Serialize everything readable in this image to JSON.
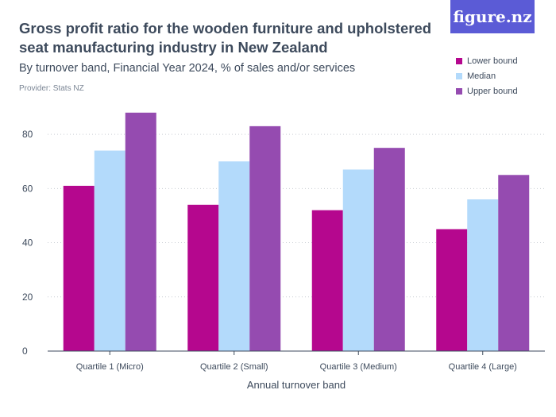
{
  "header": {
    "title": "Gross profit ratio for the wooden furniture and upholstered seat manufacturing industry in New Zealand",
    "subtitle": "By turnover band, Financial Year 2024, % of sales and/or services",
    "provider": "Provider: Stats NZ",
    "logo_text": "figure.nz"
  },
  "colors": {
    "lower": "#b5078e",
    "median": "#b3dafb",
    "upper": "#954bb0",
    "logo_bg": "#5b5bd6"
  },
  "chart_data": {
    "type": "bar",
    "categories": [
      "Quartile 1 (Micro)",
      "Quartile 2 (Small)",
      "Quartile 3 (Medium)",
      "Quartile 4 (Large)"
    ],
    "series": [
      {
        "name": "Lower bound",
        "color": "#b5078e",
        "values": [
          61,
          54,
          52,
          45
        ]
      },
      {
        "name": "Median",
        "color": "#b3dafb",
        "values": [
          74,
          70,
          67,
          56
        ]
      },
      {
        "name": "Upper bound",
        "color": "#954bb0",
        "values": [
          88,
          83,
          75,
          65
        ]
      }
    ],
    "xlabel": "Annual turnover band",
    "ylabel": "",
    "ylim": [
      0,
      90
    ],
    "yticks": [
      0,
      20,
      40,
      60,
      80
    ],
    "grid": true,
    "legend_position": "top-right"
  }
}
